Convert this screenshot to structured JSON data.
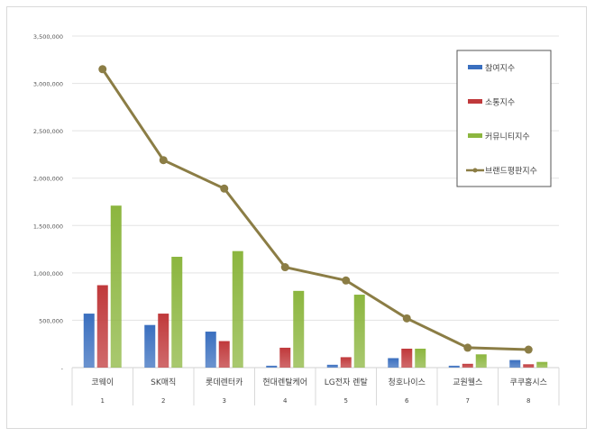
{
  "chart_data": {
    "type": "bar",
    "title": "",
    "xlabel": "",
    "ylabel": "",
    "ylim": [
      0,
      3500000
    ],
    "yticks": [
      0,
      500000,
      1000000,
      1500000,
      2000000,
      2500000,
      3000000,
      3500000
    ],
    "ytick_labels": [
      "-",
      "500,000",
      "1,000,000",
      "1,500,000",
      "2,000,000",
      "2,500,000",
      "3,000,000",
      "3,500,000"
    ],
    "categories": [
      "코웨이",
      "SK매직",
      "롯데렌터카",
      "현대렌탈케어",
      "LG전자 렌탈",
      "청호나이스",
      "교원웰스",
      "쿠쿠홈시스"
    ],
    "ranks": [
      "1",
      "2",
      "3",
      "4",
      "5",
      "6",
      "7",
      "8"
    ],
    "series": [
      {
        "name": "참여지수",
        "type": "bar",
        "color": "#3a6fbf",
        "values": [
          570000,
          450000,
          380000,
          20000,
          30000,
          100000,
          20000,
          80000
        ]
      },
      {
        "name": "소통지수",
        "type": "bar",
        "color": "#c0393b",
        "values": [
          870000,
          570000,
          280000,
          210000,
          110000,
          200000,
          40000,
          35000
        ]
      },
      {
        "name": "커뮤니티지수",
        "type": "bar",
        "color": "#8cb63f",
        "values": [
          1710000,
          1170000,
          1230000,
          810000,
          770000,
          200000,
          140000,
          60000
        ]
      },
      {
        "name": "브랜드평판지수",
        "type": "line",
        "color": "#8b7d45",
        "values": [
          3150000,
          2190000,
          1890000,
          1060000,
          920000,
          520000,
          210000,
          190000
        ]
      }
    ],
    "grid": true,
    "legend": "top-right"
  }
}
